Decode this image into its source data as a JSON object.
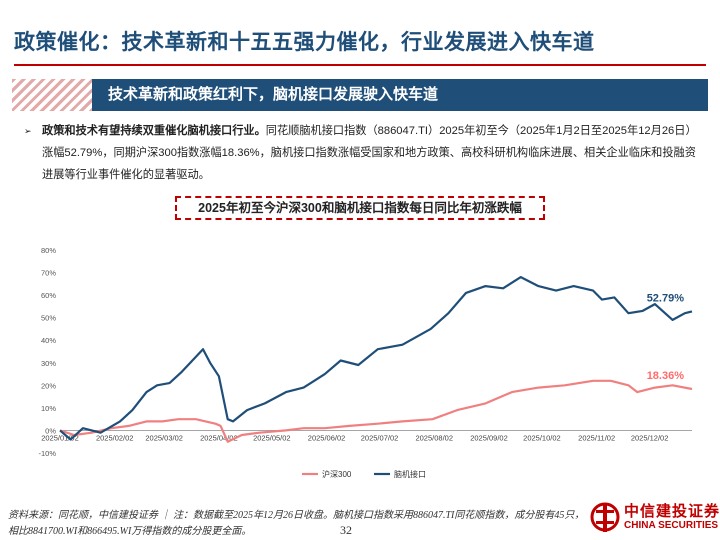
{
  "page": {
    "title": "政策催化：技术革新和十五五强力催化，行业发展进入快车道",
    "banner": "技术革新和政策红利下，脑机接口发展驶入快车道",
    "bullet_bold": "政策和技术有望持续双重催化脑机接口行业。",
    "bullet_rest": "同花顺脑机接口指数（886047.TI）2025年初至今（2025年1月2日至2025年12月26日）涨幅52.79%，同期沪深300指数涨幅18.36%，脑机接口指数涨幅受国家和地方政策、高校科研机构临床进展、相关企业临床和投融资进展等行业事件催化的显著驱动。",
    "source": "资料来源：同花顺，中信建投证券 ｜ 注：数据截至2025年12月26日收盘。脑机接口指数采用886047.TI同花顺指数，成分股有45只，相比8841700.WI和866495.WI万得指数的成分股更全面。",
    "page_number": "32",
    "logo_cn": "中信建投证券",
    "logo_en": "CHINA SECURITIES"
  },
  "chart_data": {
    "type": "line",
    "title": "2025年初至今沪深300和脑机接口指数每日同比年初涨跌幅",
    "xlabel": "",
    "ylabel": "",
    "ylim": [
      -0.1,
      0.8
    ],
    "y_ticks": [
      "-10%",
      "0%",
      "10%",
      "20%",
      "30%",
      "40%",
      "50%",
      "60%",
      "70%",
      "80%"
    ],
    "x_ticks": [
      "2025/01/02",
      "2025/02/02",
      "2025/03/02",
      "2025/04/02",
      "2025/05/02",
      "2025/06/02",
      "2025/07/02",
      "2025/08/02",
      "2025/09/02",
      "2025/10/02",
      "2025/11/02",
      "2025/12/02"
    ],
    "grid": false,
    "legend_position": "bottom",
    "annotations": [
      {
        "series": "脑机接口",
        "text": "52.79%",
        "color": "#1f4e79"
      },
      {
        "series": "沪深300",
        "text": "18.36%",
        "color": "#ff6b6b"
      }
    ],
    "series": [
      {
        "name": "沪深300",
        "color": "#f08080",
        "points": [
          [
            "2025-01-02",
            0.0
          ],
          [
            "2025-01-10",
            -0.02
          ],
          [
            "2025-01-20",
            -0.01
          ],
          [
            "2025-01-31",
            0.01
          ],
          [
            "2025-02-10",
            0.02
          ],
          [
            "2025-02-20",
            0.04
          ],
          [
            "2025-03-01",
            0.04
          ],
          [
            "2025-03-10",
            0.05
          ],
          [
            "2025-03-20",
            0.05
          ],
          [
            "2025-03-31",
            0.03
          ],
          [
            "2025-04-03",
            0.02
          ],
          [
            "2025-04-07",
            -0.05
          ],
          [
            "2025-04-15",
            -0.02
          ],
          [
            "2025-04-25",
            -0.01
          ],
          [
            "2025-05-10",
            0.0
          ],
          [
            "2025-05-20",
            0.01
          ],
          [
            "2025-06-01",
            0.01
          ],
          [
            "2025-06-15",
            0.02
          ],
          [
            "2025-07-01",
            0.03
          ],
          [
            "2025-07-15",
            0.04
          ],
          [
            "2025-08-01",
            0.05
          ],
          [
            "2025-08-15",
            0.09
          ],
          [
            "2025-08-31",
            0.12
          ],
          [
            "2025-09-15",
            0.17
          ],
          [
            "2025-09-30",
            0.19
          ],
          [
            "2025-10-15",
            0.2
          ],
          [
            "2025-10-31",
            0.22
          ],
          [
            "2025-11-10",
            0.22
          ],
          [
            "2025-11-20",
            0.2
          ],
          [
            "2025-11-25",
            0.17
          ],
          [
            "2025-12-05",
            0.19
          ],
          [
            "2025-12-15",
            0.2
          ],
          [
            "2025-12-26",
            0.1836
          ]
        ]
      },
      {
        "name": "脑机接口",
        "color": "#1f4e79",
        "points": [
          [
            "2025-01-02",
            0.0
          ],
          [
            "2025-01-08",
            -0.04
          ],
          [
            "2025-01-15",
            0.01
          ],
          [
            "2025-01-25",
            -0.01
          ],
          [
            "2025-02-05",
            0.04
          ],
          [
            "2025-02-12",
            0.09
          ],
          [
            "2025-02-20",
            0.17
          ],
          [
            "2025-02-26",
            0.2
          ],
          [
            "2025-03-05",
            0.21
          ],
          [
            "2025-03-12",
            0.26
          ],
          [
            "2025-03-18",
            0.31
          ],
          [
            "2025-03-24",
            0.36
          ],
          [
            "2025-03-28",
            0.3
          ],
          [
            "2025-04-02",
            0.24
          ],
          [
            "2025-04-07",
            0.05
          ],
          [
            "2025-04-10",
            0.04
          ],
          [
            "2025-04-18",
            0.09
          ],
          [
            "2025-04-28",
            0.12
          ],
          [
            "2025-05-10",
            0.17
          ],
          [
            "2025-05-20",
            0.19
          ],
          [
            "2025-06-01",
            0.25
          ],
          [
            "2025-06-10",
            0.31
          ],
          [
            "2025-06-20",
            0.29
          ],
          [
            "2025-07-01",
            0.36
          ],
          [
            "2025-07-15",
            0.38
          ],
          [
            "2025-07-31",
            0.45
          ],
          [
            "2025-08-10",
            0.52
          ],
          [
            "2025-08-20",
            0.61
          ],
          [
            "2025-08-31",
            0.64
          ],
          [
            "2025-09-10",
            0.63
          ],
          [
            "2025-09-20",
            0.68
          ],
          [
            "2025-09-30",
            0.64
          ],
          [
            "2025-10-10",
            0.62
          ],
          [
            "2025-10-20",
            0.64
          ],
          [
            "2025-10-31",
            0.62
          ],
          [
            "2025-11-05",
            0.58
          ],
          [
            "2025-11-12",
            0.59
          ],
          [
            "2025-11-20",
            0.52
          ],
          [
            "2025-11-28",
            0.53
          ],
          [
            "2025-12-05",
            0.56
          ],
          [
            "2025-12-15",
            0.49
          ],
          [
            "2025-12-22",
            0.52
          ],
          [
            "2025-12-26",
            0.5279
          ]
        ]
      }
    ]
  }
}
